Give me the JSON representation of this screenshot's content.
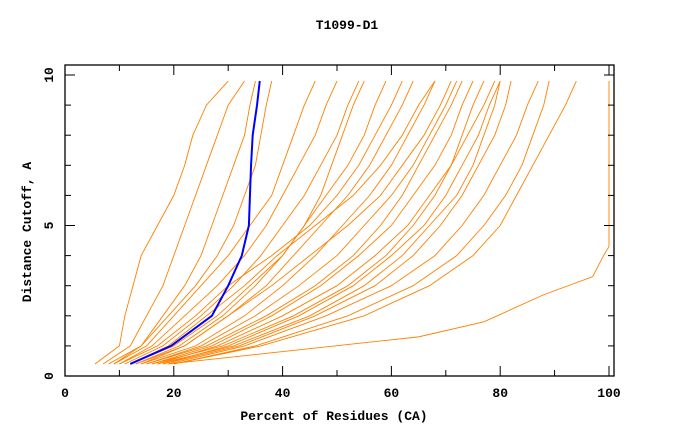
{
  "chart_data": {
    "type": "line",
    "title": "T1099-D1",
    "xlabel": "Percent of Residues (CA)",
    "ylabel": "Distance Cutoff, A",
    "xlim": [
      0,
      101
    ],
    "ylim": [
      0,
      10.3
    ],
    "x_ticks": [
      0,
      20,
      40,
      60,
      80,
      100
    ],
    "y_ticks": [
      0,
      5,
      10
    ],
    "grid": false,
    "colors": {
      "models": "#ff8000",
      "highlight": "#0000ff",
      "axes": "#000000"
    },
    "y": [
      0.4,
      1,
      2,
      3,
      4,
      5,
      6,
      7,
      8,
      9,
      9.8
    ],
    "series": [
      {
        "x": [
          5.5,
          10,
          11,
          12.5,
          14,
          17,
          20,
          22,
          23.5,
          26,
          30
        ]
      },
      {
        "x": [
          7,
          12,
          15,
          18,
          20,
          22,
          24,
          26,
          28,
          30,
          33
        ]
      },
      {
        "x": [
          8,
          14,
          18,
          22,
          25,
          27,
          29,
          31,
          33,
          34,
          35
        ]
      },
      {
        "x": [
          9,
          15,
          20,
          25,
          30,
          34,
          38,
          40,
          42,
          44,
          46
        ]
      },
      {
        "x": [
          10,
          16,
          22,
          28,
          33,
          37,
          40,
          43,
          46,
          48,
          50
        ]
      },
      {
        "x": [
          11,
          18,
          25,
          31,
          36,
          40,
          44,
          47,
          50,
          52,
          54
        ]
      },
      {
        "x": [
          12,
          20,
          28,
          34,
          40,
          44,
          48,
          52,
          55,
          57,
          59
        ]
      },
      {
        "x": [
          13,
          22,
          30,
          37,
          42,
          47,
          52,
          56,
          59,
          62,
          64
        ]
      },
      {
        "x": [
          14,
          24,
          33,
          40,
          46,
          51,
          56,
          60,
          63,
          66,
          68
        ]
      },
      {
        "x": [
          15,
          25,
          35,
          43,
          50,
          55,
          60,
          64,
          67,
          70,
          72
        ]
      },
      {
        "x": [
          16,
          27,
          38,
          47,
          54,
          60,
          64,
          68,
          71,
          73,
          75
        ]
      },
      {
        "x": [
          17,
          28,
          40,
          50,
          57,
          63,
          67,
          71,
          73,
          75,
          77
        ]
      },
      {
        "x": [
          18,
          30,
          43,
          53,
          60,
          66,
          70,
          73,
          76,
          78,
          80
        ]
      },
      {
        "x": [
          18,
          32,
          46,
          57,
          64,
          69,
          73,
          76,
          79,
          81,
          82
        ]
      },
      {
        "x": [
          19,
          33,
          48,
          60,
          68,
          73,
          77,
          80,
          83,
          85,
          87
        ]
      },
      {
        "x": [
          20,
          35,
          52,
          64,
          72,
          77,
          81,
          84,
          86,
          88,
          89
        ]
      },
      {
        "x": [
          20,
          36,
          55,
          67,
          75,
          80,
          83,
          86,
          89,
          92,
          94
        ]
      },
      {
        "x": [
          10,
          17,
          24,
          30,
          38,
          45,
          50,
          54,
          57,
          60,
          62
        ]
      },
      {
        "x": [
          12,
          19,
          26,
          33,
          39,
          46,
          53,
          58,
          62,
          65,
          68
        ]
      },
      {
        "x": [
          14,
          22,
          30,
          38,
          45,
          52,
          58,
          62,
          66,
          69,
          71
        ]
      },
      {
        "x": [
          9,
          14,
          19,
          24,
          28,
          31,
          33,
          35,
          36,
          37,
          38
        ]
      },
      {
        "x": [
          13,
          21,
          29,
          35,
          40,
          44,
          47,
          49,
          51,
          53,
          55
        ]
      },
      {
        "x": [
          15,
          26,
          37,
          46,
          53,
          58,
          62,
          65,
          68,
          71,
          73
        ]
      },
      {
        "x": [
          16,
          29,
          42,
          52,
          59,
          64,
          68,
          71,
          74,
          77,
          79
        ]
      },
      {
        "x": [
          17,
          31,
          45,
          55,
          62,
          67,
          72,
          75,
          77,
          79,
          80
        ]
      },
      {
        "x": [
          19,
          65,
          77,
          88,
          97,
          99,
          100
        ],
        "y": [
          0.4,
          1.3,
          1.8,
          2.7,
          3.3,
          4,
          4.3
        ]
      },
      {
        "x": [
          100,
          100
        ],
        "y": [
          4.3,
          9.8
        ]
      }
    ],
    "highlight": {
      "x": [
        12,
        19.5,
        27,
        30,
        32.5,
        33.8,
        34,
        34.2,
        34.5,
        35.3,
        35.8
      ]
    }
  }
}
